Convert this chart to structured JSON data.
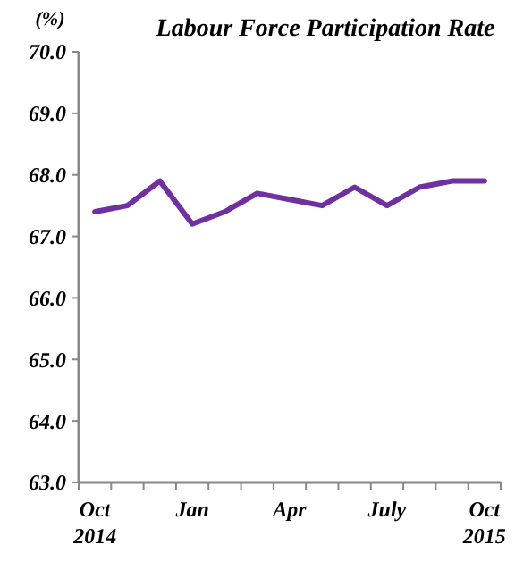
{
  "chart_data": {
    "type": "line",
    "title": "Labour Force Participation Rate",
    "ylabel": "(%)",
    "categories": [
      "Oct\n2014",
      null,
      null,
      "Jan",
      null,
      null,
      "Apr",
      null,
      null,
      "July",
      null,
      null,
      "Oct\n2015"
    ],
    "series": [
      {
        "color": "#7030a0",
        "values": [
          67.4,
          67.5,
          67.9,
          67.2,
          67.4,
          67.7,
          67.6,
          67.5,
          67.8,
          67.5,
          67.8,
          67.9,
          67.9
        ]
      }
    ],
    "ylim": [
      63,
      70
    ],
    "yticks": [
      {
        "value": 63,
        "label": "63.0"
      },
      {
        "value": 64,
        "label": "64.0"
      },
      {
        "value": 65,
        "label": "65.0"
      },
      {
        "value": 66,
        "label": "66.0"
      },
      {
        "value": 67,
        "label": "67.0"
      },
      {
        "value": 68,
        "label": "68.0"
      },
      {
        "value": 69,
        "label": "69.0"
      },
      {
        "value": 70,
        "label": "70.0"
      }
    ],
    "grid": false,
    "marker": "none",
    "line_style": "solid"
  }
}
